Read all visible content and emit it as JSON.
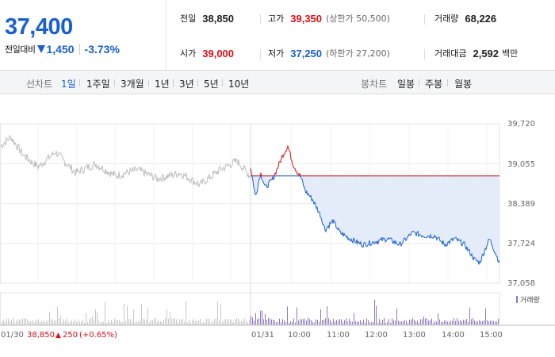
{
  "quote": {
    "price": "37,400",
    "change_label": "전일대비",
    "change_amount": "1,450",
    "change_percent": "-3.73%",
    "prev_close": {
      "label": "전일",
      "value": "38,850"
    },
    "high": {
      "label": "고가",
      "value": "39,350",
      "note": "(상한가 50,500)"
    },
    "volume": {
      "label": "거래량",
      "value": "68,226"
    },
    "open": {
      "label": "시가",
      "value": "39,000"
    },
    "low": {
      "label": "저가",
      "value": "37,250",
      "note": "(하한가 27,200)"
    },
    "amount": {
      "label": "거래대금",
      "value": "2,592",
      "unit": "백만"
    }
  },
  "toolbar": {
    "line_label": "선차트",
    "line_periods": [
      {
        "label": "1일",
        "active": true
      },
      {
        "label": "1주일",
        "active": false
      },
      {
        "label": "3개월",
        "active": false
      },
      {
        "label": "1년",
        "active": false
      },
      {
        "label": "3년",
        "active": false
      },
      {
        "label": "5년",
        "active": false
      },
      {
        "label": "10년",
        "active": false
      }
    ],
    "candle_label": "봉차트",
    "candle_periods": [
      {
        "label": "일봉"
      },
      {
        "label": "주봉"
      },
      {
        "label": "월봉"
      }
    ]
  },
  "colors": {
    "up": "#d91016",
    "down": "#1a5fd0",
    "prev_day_line": "#bdbdbd",
    "area_fill": "#e4ecf9",
    "volume_bar": "#8f78c0",
    "volume_bar_prev": "#c7c7c7"
  },
  "chart_data": {
    "type": "line",
    "y_ticks": [
      "39,720",
      "39,055",
      "38,389",
      "37,724",
      "37,058"
    ],
    "ylim": [
      37058,
      39720
    ],
    "reference_price": 38850,
    "x_tick_labels": [
      "01/31",
      "10:00",
      "11:00",
      "12:00",
      "13:00",
      "14:00",
      "15:00"
    ],
    "prev_session_label": {
      "date": "01/30",
      "close": "38,850",
      "change": "250",
      "change_pct": "(+0.65%)"
    },
    "volume_legend": "거래량",
    "series": [
      {
        "name": "",
        "session": "01/30",
        "keypoints": [
          [
            0,
            39350
          ],
          [
            0.04,
            39500
          ],
          [
            0.09,
            39200
          ],
          [
            0.15,
            39000
          ],
          [
            0.22,
            39250
          ],
          [
            0.3,
            38900
          ],
          [
            0.38,
            39050
          ],
          [
            0.46,
            38850
          ],
          [
            0.55,
            38950
          ],
          [
            0.63,
            38800
          ],
          [
            0.72,
            38900
          ],
          [
            0.8,
            38700
          ],
          [
            0.88,
            38950
          ],
          [
            0.95,
            39100
          ],
          [
            1,
            38850
          ]
        ]
      },
      {
        "name": "",
        "session": "01/31",
        "keypoints": [
          [
            0,
            39000
          ],
          [
            0.02,
            38500
          ],
          [
            0.04,
            38900
          ],
          [
            0.06,
            38650
          ],
          [
            0.09,
            38800
          ],
          [
            0.11,
            39000
          ],
          [
            0.13,
            39200
          ],
          [
            0.15,
            39350
          ],
          [
            0.17,
            39050
          ],
          [
            0.19,
            38900
          ],
          [
            0.2,
            38850
          ],
          [
            0.22,
            38600
          ],
          [
            0.25,
            38450
          ],
          [
            0.28,
            38200
          ],
          [
            0.3,
            37950
          ],
          [
            0.33,
            38100
          ],
          [
            0.36,
            37900
          ],
          [
            0.4,
            37800
          ],
          [
            0.45,
            37700
          ],
          [
            0.5,
            37750
          ],
          [
            0.55,
            37800
          ],
          [
            0.6,
            37700
          ],
          [
            0.65,
            37900
          ],
          [
            0.7,
            37850
          ],
          [
            0.74,
            37850
          ],
          [
            0.78,
            37700
          ],
          [
            0.82,
            37800
          ],
          [
            0.86,
            37700
          ],
          [
            0.9,
            37450
          ],
          [
            0.92,
            37400
          ],
          [
            0.94,
            37600
          ],
          [
            0.96,
            37800
          ],
          [
            0.98,
            37600
          ],
          [
            1,
            37400
          ]
        ]
      }
    ]
  }
}
